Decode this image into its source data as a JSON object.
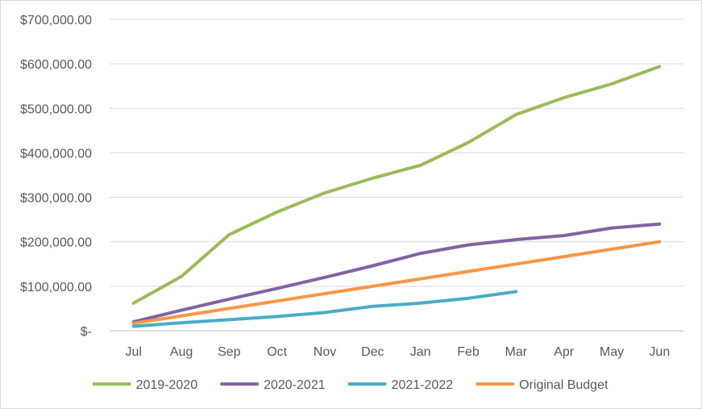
{
  "chart_data": {
    "type": "line",
    "title": "",
    "xlabel": "",
    "ylabel": "",
    "categories": [
      "Jul",
      "Aug",
      "Sep",
      "Oct",
      "Nov",
      "Dec",
      "Jan",
      "Feb",
      "Mar",
      "Apr",
      "May",
      "Jun"
    ],
    "ylim": [
      0,
      700000
    ],
    "y_ticks": [
      0,
      100000,
      200000,
      300000,
      400000,
      500000,
      600000,
      700000
    ],
    "y_tick_labels": [
      "$-",
      "$100,000.00",
      "$200,000.00",
      "$300,000.00",
      "$400,000.00",
      "$500,000.00",
      "$600,000.00",
      "$700,000.00"
    ],
    "grid": true,
    "legend_position": "bottom",
    "series": [
      {
        "name": "2019-2020",
        "color": "#9bbb59",
        "values": [
          62000,
          122000,
          216000,
          267000,
          310000,
          343000,
          372000,
          423000,
          486000,
          524000,
          555000,
          594000
        ]
      },
      {
        "name": "2020-2021",
        "color": "#8064a2",
        "values": [
          20000,
          46000,
          71000,
          95000,
          120000,
          146000,
          174000,
          193000,
          205000,
          214000,
          231000,
          240000
        ]
      },
      {
        "name": "2021-2022",
        "color": "#4bacc6",
        "values": [
          10000,
          18000,
          25000,
          32000,
          41000,
          55000,
          62000,
          73000,
          88000,
          null,
          null,
          null
        ]
      },
      {
        "name": "Original Budget",
        "color": "#f79646",
        "values": [
          16667,
          33333,
          50000,
          66667,
          83333,
          100000,
          116667,
          133333,
          150000,
          166667,
          183333,
          200000
        ]
      }
    ]
  }
}
